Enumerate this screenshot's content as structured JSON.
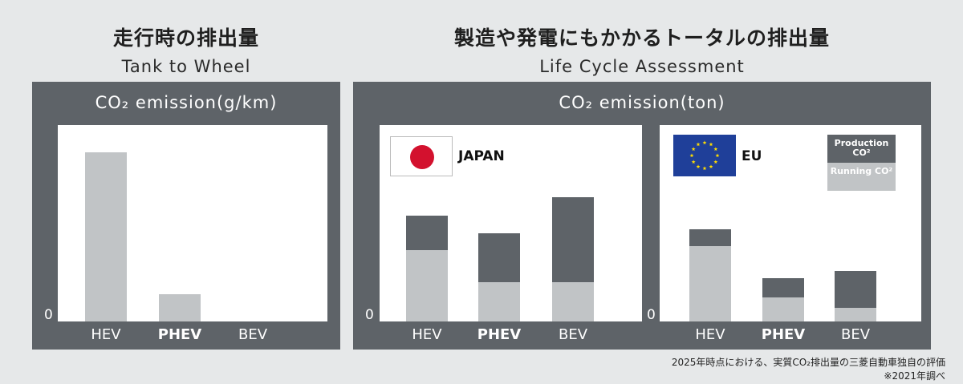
{
  "headings": {
    "left": {
      "jp": "走行時の排出量",
      "en": "Tank to Wheel"
    },
    "right": {
      "jp": "製造や発電にもかかるトータルの排出量",
      "en": "Life Cycle Assessment"
    }
  },
  "panels": {
    "left_title": "CO₂ emission(g/km)",
    "right_title": "CO₂ emission(ton)"
  },
  "zero_label": "0",
  "regions": {
    "japan": "JAPAN",
    "eu": "EU"
  },
  "legend": {
    "production": "Production CO²",
    "running": "Running CO²",
    "production_color": "#5e6368",
    "running_color": "#c1c4c6"
  },
  "chart_data": [
    {
      "type": "bar",
      "name": "Tank to Wheel",
      "categories": [
        "HEV",
        "PHEV",
        "BEV"
      ],
      "values": [
        100,
        16,
        0
      ],
      "ylim": [
        0,
        100
      ],
      "title": "CO₂ emission(g/km)"
    },
    {
      "type": "bar",
      "stacked": true,
      "name": "JAPAN",
      "categories": [
        "HEV",
        "PHEV",
        "BEV"
      ],
      "series": [
        {
          "name": "Running CO²",
          "values": [
            51,
            28,
            28
          ]
        },
        {
          "name": "Production CO²",
          "values": [
            25,
            35,
            61
          ]
        }
      ],
      "ylim": [
        0,
        120
      ],
      "title": "CO₂ emission(ton)"
    },
    {
      "type": "bar",
      "stacked": true,
      "name": "EU",
      "categories": [
        "HEV",
        "PHEV",
        "BEV"
      ],
      "series": [
        {
          "name": "Running CO²",
          "values": [
            54,
            17,
            10
          ]
        },
        {
          "name": "Production CO²",
          "values": [
            12,
            14,
            26
          ]
        }
      ],
      "ylim": [
        0,
        120
      ],
      "title": "CO₂ emission(ton)"
    }
  ],
  "footnotes": {
    "line1": "2025年時点における、実質CO₂排出量の三菱自動車独自の評価",
    "line2": "※2021年調べ"
  },
  "bold_category": "PHEV"
}
